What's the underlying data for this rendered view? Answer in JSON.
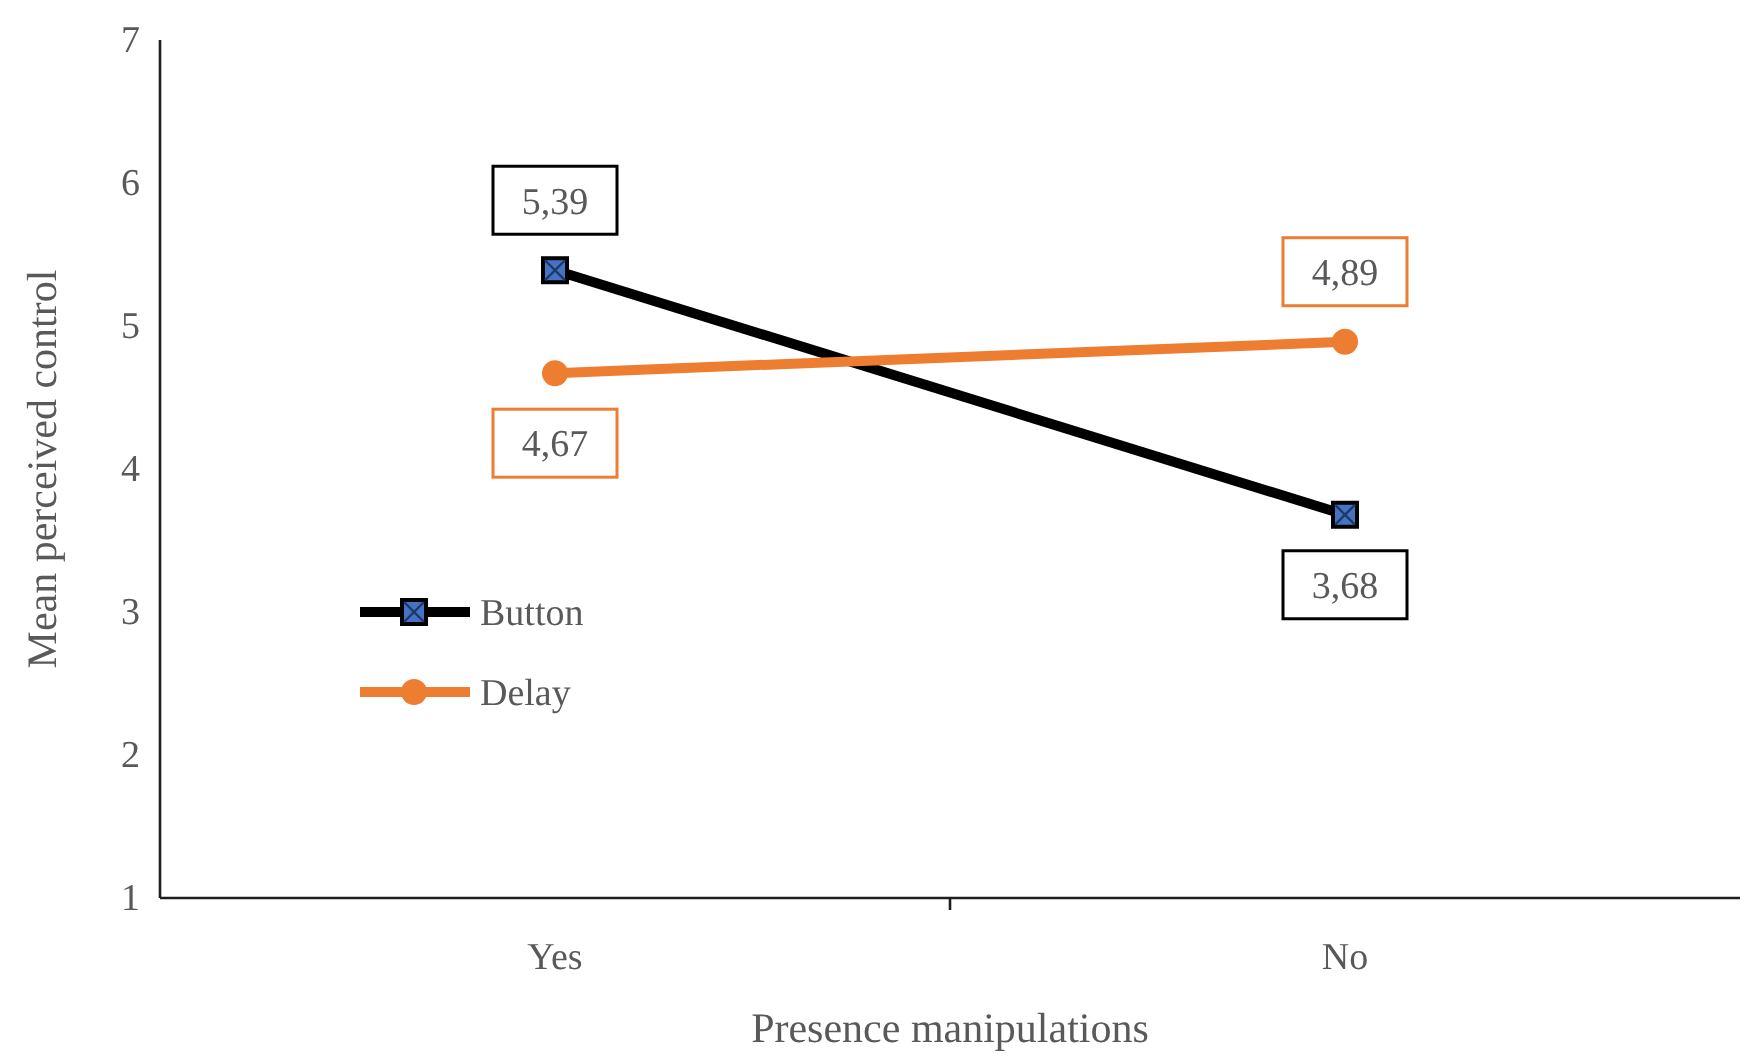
{
  "chart_data": {
    "type": "line",
    "xlabel": "Presence manipulations",
    "ylabel": "Mean perceived control",
    "categories": [
      "Yes",
      "No"
    ],
    "ylim": [
      1,
      7
    ],
    "yticks": [
      1,
      2,
      3,
      4,
      5,
      6,
      7
    ],
    "grid": false,
    "legend": "left",
    "line_style": "solid",
    "series": [
      {
        "name": "Button",
        "color": "#000000",
        "values": [
          5.39,
          3.68
        ],
        "marker": "square",
        "value_labels": [
          "5,39",
          "3,68"
        ]
      },
      {
        "name": "Delay",
        "color": "#ed7d31",
        "values": [
          4.67,
          4.89
        ],
        "marker": "circle",
        "value_labels": [
          "4,67",
          "4,89"
        ]
      }
    ]
  }
}
